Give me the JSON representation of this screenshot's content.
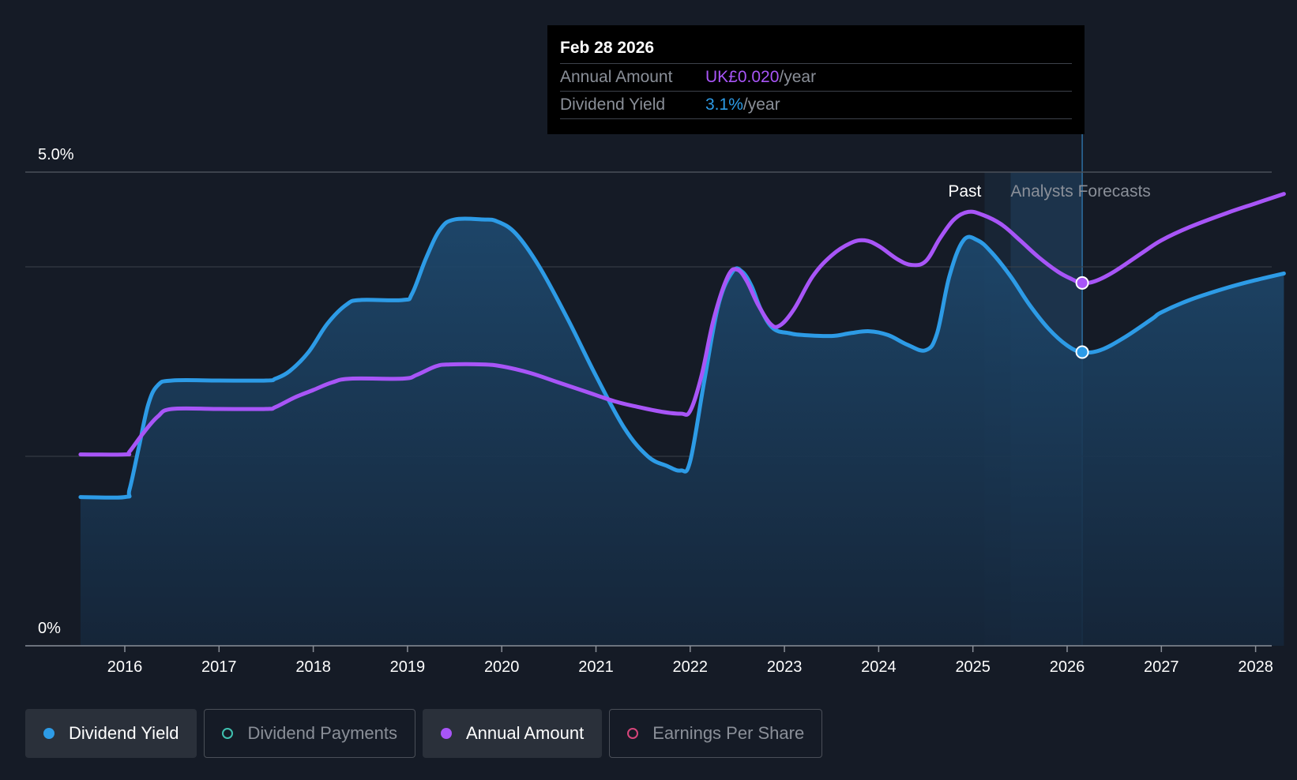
{
  "tooltip": {
    "date": "Feb 28 2026",
    "rows": [
      {
        "label": "Annual Amount",
        "value": "UK£0.020",
        "unit": "/year"
      },
      {
        "label": "Dividend Yield",
        "value": "3.1%",
        "unit": "/year"
      }
    ]
  },
  "regions": {
    "past_label": "Past",
    "forecast_label": "Analysts Forecasts"
  },
  "legend": [
    {
      "label": "Dividend Yield",
      "color": "#2d9be6",
      "active": true,
      "filled": true
    },
    {
      "label": "Dividend Payments",
      "color": "#3fc1b0",
      "active": false,
      "filled": false
    },
    {
      "label": "Annual Amount",
      "color": "#a855f7",
      "active": true,
      "filled": true
    },
    {
      "label": "Earnings Per Share",
      "color": "#d6457a",
      "active": false,
      "filled": false
    }
  ],
  "colors": {
    "background": "#151b26",
    "yield_line": "#2d9be6",
    "amount_line": "#a855f7",
    "grid": "#3a404a"
  },
  "chart_data": {
    "type": "line",
    "title": "",
    "xlabel": "",
    "ylabel": "",
    "x_ticks": [
      "2016",
      "2017",
      "2018",
      "2019",
      "2020",
      "2021",
      "2022",
      "2023",
      "2024",
      "2025",
      "2026",
      "2027",
      "2028"
    ],
    "y_ticks": [
      "0%",
      "5.0%"
    ],
    "xlim": [
      2015.0,
      2028.3
    ],
    "ylim": [
      0,
      5.0
    ],
    "grid": true,
    "past_forecast_split": 2025.4,
    "highlight_x": 2026.16,
    "series": [
      {
        "name": "Dividend Yield",
        "unit": "%",
        "area_fill": true,
        "points": [
          [
            2015.53,
            1.57
          ],
          [
            2016.0,
            1.57
          ],
          [
            2016.05,
            1.65
          ],
          [
            2016.15,
            2.1
          ],
          [
            2016.25,
            2.55
          ],
          [
            2016.35,
            2.75
          ],
          [
            2016.5,
            2.8
          ],
          [
            2017.0,
            2.8
          ],
          [
            2017.5,
            2.8
          ],
          [
            2017.6,
            2.82
          ],
          [
            2017.75,
            2.9
          ],
          [
            2017.95,
            3.1
          ],
          [
            2018.15,
            3.4
          ],
          [
            2018.35,
            3.6
          ],
          [
            2018.5,
            3.65
          ],
          [
            2018.95,
            3.65
          ],
          [
            2019.05,
            3.72
          ],
          [
            2019.2,
            4.1
          ],
          [
            2019.35,
            4.4
          ],
          [
            2019.5,
            4.5
          ],
          [
            2019.8,
            4.5
          ],
          [
            2019.95,
            4.48
          ],
          [
            2020.15,
            4.35
          ],
          [
            2020.4,
            4.0
          ],
          [
            2020.7,
            3.45
          ],
          [
            2021.0,
            2.85
          ],
          [
            2021.3,
            2.3
          ],
          [
            2021.55,
            2.0
          ],
          [
            2021.75,
            1.9
          ],
          [
            2021.9,
            1.85
          ],
          [
            2022.0,
            1.95
          ],
          [
            2022.15,
            2.8
          ],
          [
            2022.3,
            3.6
          ],
          [
            2022.45,
            3.95
          ],
          [
            2022.55,
            3.95
          ],
          [
            2022.65,
            3.8
          ],
          [
            2022.75,
            3.55
          ],
          [
            2022.88,
            3.35
          ],
          [
            2023.05,
            3.3
          ],
          [
            2023.2,
            3.28
          ],
          [
            2023.5,
            3.27
          ],
          [
            2023.7,
            3.3
          ],
          [
            2023.9,
            3.32
          ],
          [
            2024.1,
            3.28
          ],
          [
            2024.3,
            3.18
          ],
          [
            2024.5,
            3.12
          ],
          [
            2024.62,
            3.3
          ],
          [
            2024.75,
            3.9
          ],
          [
            2024.9,
            4.28
          ],
          [
            2025.05,
            4.28
          ],
          [
            2025.2,
            4.15
          ],
          [
            2025.4,
            3.9
          ],
          [
            2025.6,
            3.6
          ],
          [
            2025.8,
            3.35
          ],
          [
            2026.0,
            3.17
          ],
          [
            2026.16,
            3.1
          ],
          [
            2026.35,
            3.12
          ],
          [
            2026.6,
            3.25
          ],
          [
            2026.9,
            3.45
          ],
          [
            2027.0,
            3.52
          ],
          [
            2027.3,
            3.65
          ],
          [
            2027.7,
            3.78
          ],
          [
            2028.0,
            3.86
          ],
          [
            2028.3,
            3.93
          ]
        ]
      },
      {
        "name": "Annual Amount",
        "unit": "UK£",
        "area_fill": false,
        "points": [
          [
            2015.53,
            2.02
          ],
          [
            2016.0,
            2.02
          ],
          [
            2016.05,
            2.05
          ],
          [
            2016.2,
            2.25
          ],
          [
            2016.35,
            2.42
          ],
          [
            2016.5,
            2.5
          ],
          [
            2017.0,
            2.5
          ],
          [
            2017.5,
            2.5
          ],
          [
            2017.6,
            2.52
          ],
          [
            2017.8,
            2.62
          ],
          [
            2018.0,
            2.7
          ],
          [
            2018.2,
            2.78
          ],
          [
            2018.4,
            2.82
          ],
          [
            2018.95,
            2.82
          ],
          [
            2019.1,
            2.86
          ],
          [
            2019.3,
            2.95
          ],
          [
            2019.45,
            2.97
          ],
          [
            2019.8,
            2.97
          ],
          [
            2020.0,
            2.95
          ],
          [
            2020.3,
            2.88
          ],
          [
            2020.6,
            2.78
          ],
          [
            2020.9,
            2.68
          ],
          [
            2021.2,
            2.58
          ],
          [
            2021.45,
            2.52
          ],
          [
            2021.7,
            2.47
          ],
          [
            2021.9,
            2.45
          ],
          [
            2022.0,
            2.48
          ],
          [
            2022.12,
            2.85
          ],
          [
            2022.25,
            3.45
          ],
          [
            2022.4,
            3.9
          ],
          [
            2022.5,
            3.97
          ],
          [
            2022.6,
            3.85
          ],
          [
            2022.72,
            3.6
          ],
          [
            2022.85,
            3.4
          ],
          [
            2022.95,
            3.38
          ],
          [
            2023.1,
            3.55
          ],
          [
            2023.3,
            3.9
          ],
          [
            2023.5,
            4.12
          ],
          [
            2023.7,
            4.25
          ],
          [
            2023.85,
            4.28
          ],
          [
            2024.0,
            4.22
          ],
          [
            2024.2,
            4.08
          ],
          [
            2024.35,
            4.02
          ],
          [
            2024.5,
            4.06
          ],
          [
            2024.65,
            4.3
          ],
          [
            2024.8,
            4.5
          ],
          [
            2024.95,
            4.58
          ],
          [
            2025.1,
            4.55
          ],
          [
            2025.3,
            4.45
          ],
          [
            2025.5,
            4.28
          ],
          [
            2025.7,
            4.1
          ],
          [
            2025.9,
            3.95
          ],
          [
            2026.05,
            3.87
          ],
          [
            2026.16,
            3.83
          ],
          [
            2026.3,
            3.85
          ],
          [
            2026.5,
            3.95
          ],
          [
            2026.8,
            4.15
          ],
          [
            2027.0,
            4.28
          ],
          [
            2027.3,
            4.42
          ],
          [
            2027.7,
            4.57
          ],
          [
            2028.0,
            4.67
          ],
          [
            2028.3,
            4.77
          ]
        ]
      }
    ]
  }
}
